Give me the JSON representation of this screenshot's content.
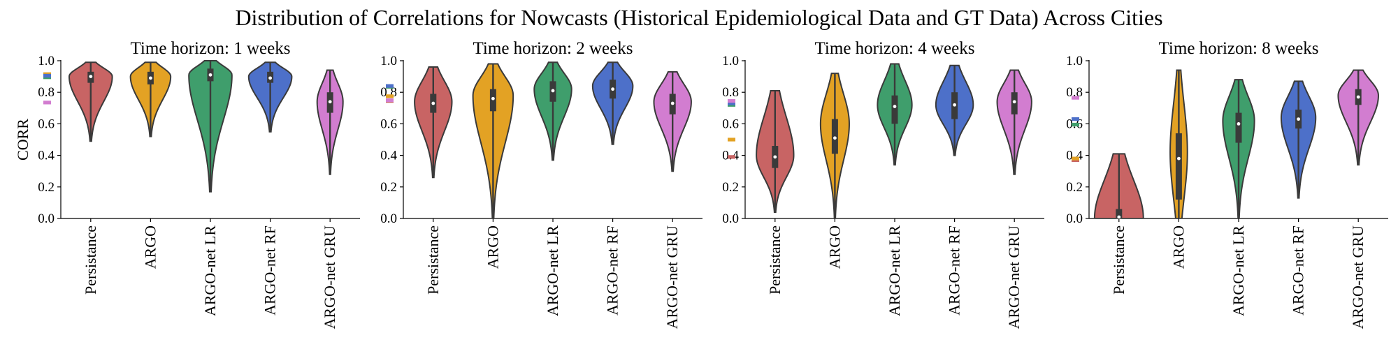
{
  "chart_data": {
    "type": "violin",
    "title": "Distribution of Correlations for Nowcasts (Historical Epidemiological Data and GT Data) Across Cities",
    "categories": [
      "Persistance",
      "ARGO",
      "ARGO-net LR",
      "ARGO-net RF",
      "ARGO-net GRU"
    ],
    "ylabel": "CORR",
    "ylim": [
      0,
      1
    ],
    "yticks": [
      "0.0",
      "0.2",
      "0.4",
      "0.6",
      "0.8",
      "1.0"
    ],
    "colors": {
      "Persistance": "#c86464",
      "ARGO": "#e3a224",
      "ARGO-net LR": "#3f9e6c",
      "ARGO-net RF": "#4d70c9",
      "ARGO-net GRU": "#d27dd0"
    },
    "panels": [
      {
        "title": "Time horizon: 1 weeks",
        "violins": [
          {
            "category": "Persistance",
            "min": 0.49,
            "q1": 0.86,
            "median": 0.9,
            "q3": 0.93,
            "max": 0.99,
            "peak": 0.9,
            "width": 0.75,
            "reference": 0.905
          },
          {
            "category": "ARGO",
            "min": 0.52,
            "q1": 0.85,
            "median": 0.89,
            "q3": 0.93,
            "max": 0.99,
            "peak": 0.9,
            "width": 0.7,
            "reference": 0.915
          },
          {
            "category": "ARGO-net LR",
            "min": 0.17,
            "q1": 0.87,
            "median": 0.91,
            "q3": 0.95,
            "max": 1.0,
            "peak": 0.91,
            "width": 0.75,
            "reference": 0.895
          },
          {
            "category": "ARGO-net RF",
            "min": 0.55,
            "q1": 0.86,
            "median": 0.89,
            "q3": 0.93,
            "max": 0.99,
            "peak": 0.9,
            "width": 0.75,
            "reference": 0.905
          },
          {
            "category": "ARGO-net GRU",
            "min": 0.28,
            "q1": 0.67,
            "median": 0.74,
            "q3": 0.8,
            "max": 0.94,
            "peak": 0.74,
            "width": 0.45,
            "reference": 0.735
          }
        ]
      },
      {
        "title": "Time horizon: 2 weeks",
        "violins": [
          {
            "category": "Persistance",
            "min": 0.26,
            "q1": 0.67,
            "median": 0.73,
            "q3": 0.79,
            "max": 0.96,
            "peak": 0.74,
            "width": 0.65,
            "reference": 0.745
          },
          {
            "category": "ARGO",
            "min": 0.0,
            "q1": 0.68,
            "median": 0.76,
            "q3": 0.82,
            "max": 0.98,
            "peak": 0.78,
            "width": 0.7,
            "reference": 0.775
          },
          {
            "category": "ARGO-net LR",
            "min": 0.37,
            "q1": 0.74,
            "median": 0.81,
            "q3": 0.87,
            "max": 0.99,
            "peak": 0.82,
            "width": 0.65,
            "reference": 0.835
          },
          {
            "category": "ARGO-net RF",
            "min": 0.47,
            "q1": 0.76,
            "median": 0.82,
            "q3": 0.88,
            "max": 0.99,
            "peak": 0.84,
            "width": 0.7,
            "reference": 0.84
          },
          {
            "category": "ARGO-net GRU",
            "min": 0.3,
            "q1": 0.66,
            "median": 0.73,
            "q3": 0.79,
            "max": 0.93,
            "peak": 0.74,
            "width": 0.65,
            "reference": 0.75
          }
        ]
      },
      {
        "title": "Time horizon: 4 weeks",
        "violins": [
          {
            "category": "Persistance",
            "min": 0.04,
            "q1": 0.32,
            "median": 0.39,
            "q3": 0.46,
            "max": 0.81,
            "peak": 0.4,
            "width": 0.65,
            "reference": 0.39
          },
          {
            "category": "ARGO",
            "min": 0.0,
            "q1": 0.41,
            "median": 0.51,
            "q3": 0.63,
            "max": 0.92,
            "peak": 0.6,
            "width": 0.5,
            "reference": 0.5
          },
          {
            "category": "ARGO-net LR",
            "min": 0.34,
            "q1": 0.6,
            "median": 0.71,
            "q3": 0.78,
            "max": 0.98,
            "peak": 0.72,
            "width": 0.6,
            "reference": 0.72
          },
          {
            "category": "ARGO-net RF",
            "min": 0.4,
            "q1": 0.63,
            "median": 0.72,
            "q3": 0.8,
            "max": 0.97,
            "peak": 0.72,
            "width": 0.65,
            "reference": 0.73
          },
          {
            "category": "ARGO-net GRU",
            "min": 0.28,
            "q1": 0.66,
            "median": 0.74,
            "q3": 0.8,
            "max": 0.94,
            "peak": 0.74,
            "width": 0.6,
            "reference": 0.745
          }
        ]
      },
      {
        "title": "Time horizon: 8 weeks",
        "violins": [
          {
            "category": "Persistance",
            "min": 0.0,
            "q1": 0.0,
            "median": 0.0,
            "q3": 0.06,
            "max": 0.41,
            "peak": 0.0,
            "width": 0.85,
            "reference": 0.37
          },
          {
            "category": "ARGO",
            "min": 0.0,
            "q1": 0.12,
            "median": 0.38,
            "q3": 0.54,
            "max": 0.94,
            "peak": 0.42,
            "width": 0.3,
            "reference": 0.38
          },
          {
            "category": "ARGO-net LR",
            "min": 0.0,
            "q1": 0.48,
            "median": 0.6,
            "q3": 0.67,
            "max": 0.88,
            "peak": 0.62,
            "width": 0.55,
            "reference": 0.595
          },
          {
            "category": "ARGO-net RF",
            "min": 0.13,
            "q1": 0.57,
            "median": 0.63,
            "q3": 0.69,
            "max": 0.87,
            "peak": 0.64,
            "width": 0.6,
            "reference": 0.63
          },
          {
            "category": "ARGO-net GRU",
            "min": 0.34,
            "q1": 0.72,
            "median": 0.77,
            "q3": 0.82,
            "max": 0.94,
            "peak": 0.78,
            "width": 0.7,
            "reference": 0.765
          }
        ]
      }
    ]
  }
}
